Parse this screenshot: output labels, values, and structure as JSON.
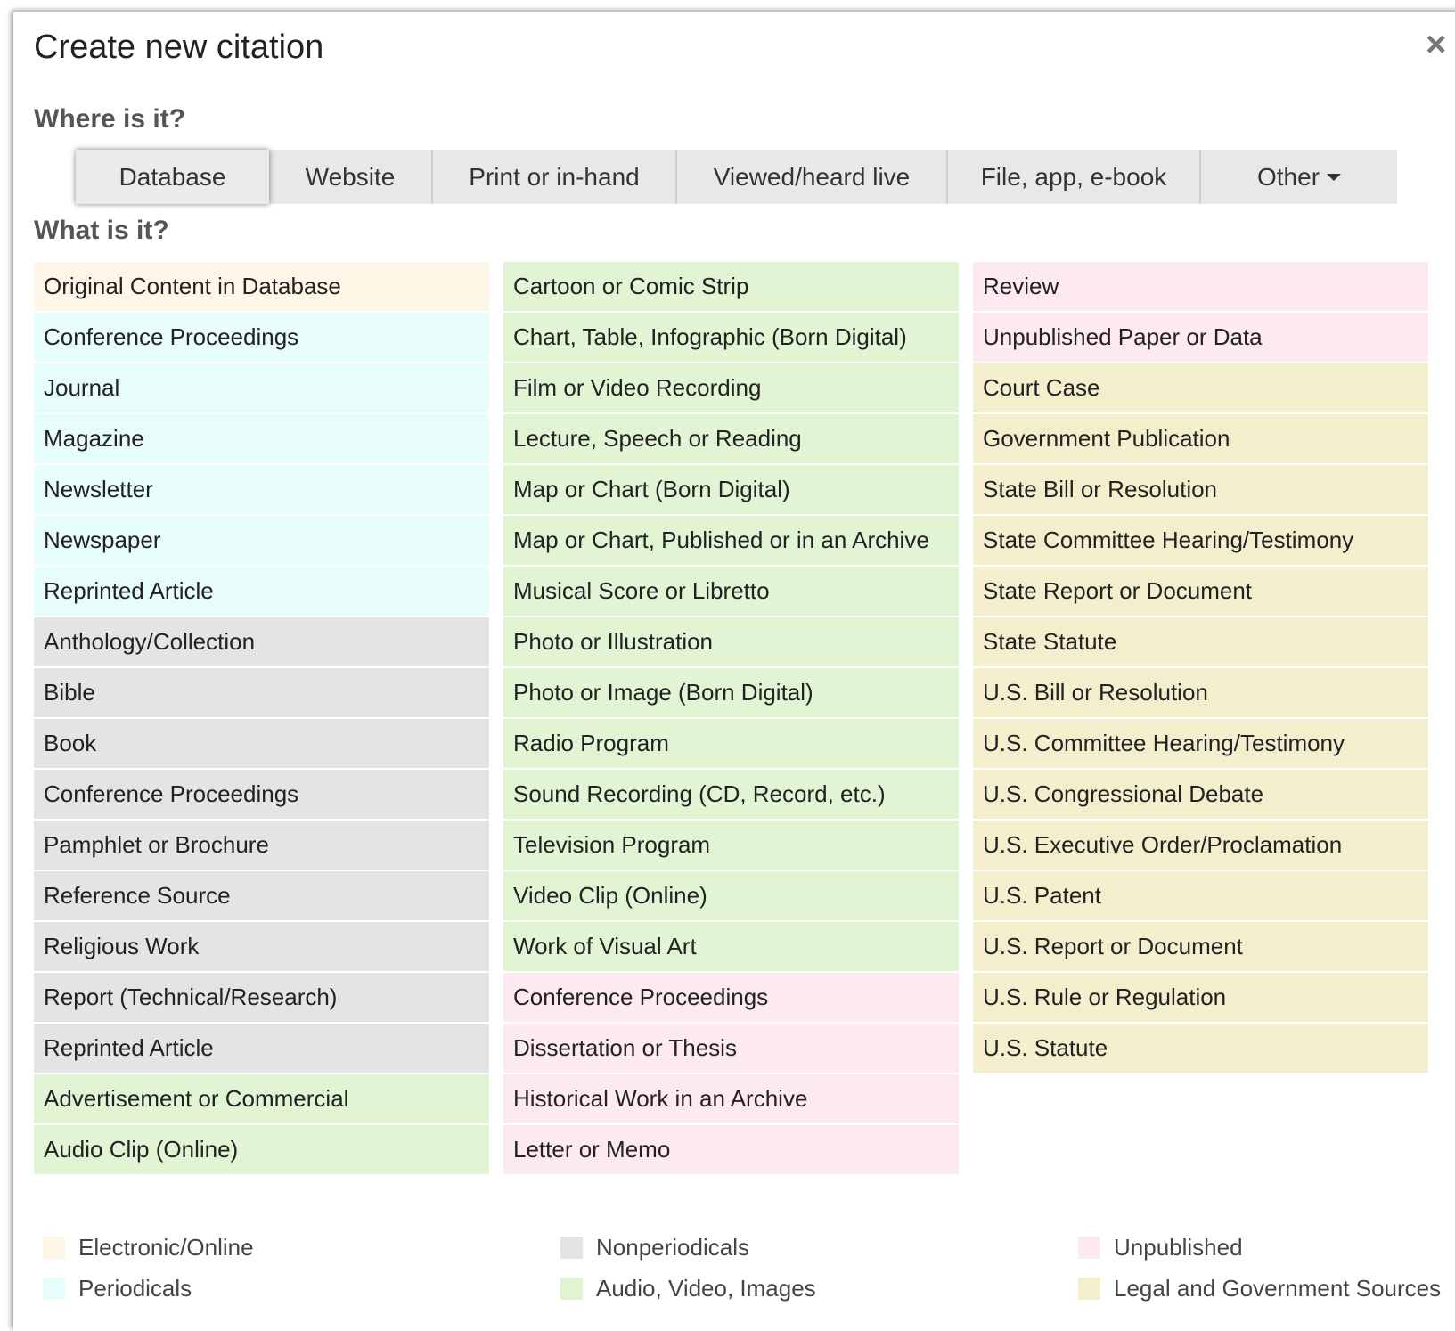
{
  "dialog": {
    "title": "Create new citation",
    "close": "×",
    "where_label": "Where is it?",
    "tabs": [
      {
        "label": "Database",
        "selected": true
      },
      {
        "label": "Website"
      },
      {
        "label": "Print or in-hand"
      },
      {
        "label": "Viewed/heard live"
      },
      {
        "label": "File, app, e-book"
      },
      {
        "label": "Other",
        "dropdown": true
      }
    ],
    "what_label": "What is it?",
    "groups": [
      {
        "name": "Electronic/Online",
        "color": "#fdf5e5",
        "items": [
          "Original Content in Database"
        ]
      },
      {
        "name": "Periodicals",
        "color": "#e7fdfb",
        "items": [
          "Conference Proceedings",
          "Journal",
          "Magazine",
          "Newsletter",
          "Newspaper",
          "Reprinted Article"
        ]
      },
      {
        "name": "Nonperiodicals",
        "color": "#e4e4e4",
        "items": [
          "Anthology/Collection",
          "Bible",
          "Book",
          "Conference Proceedings",
          "Pamphlet or Brochure",
          "Reference Source",
          "Religious Work",
          "Report (Technical/Research)",
          "Reprinted Article"
        ]
      },
      {
        "name": "Audio, Video, Images",
        "color": "#e1f5d5",
        "items": [
          "Advertisement or Commercial",
          "Audio Clip (Online)",
          "Cartoon or Comic Strip",
          "Chart, Table, Infographic (Born Digital)",
          "Film or Video Recording",
          "Lecture, Speech or Reading",
          "Map or Chart (Born Digital)",
          "Map or Chart, Published or in an Archive",
          "Musical Score or Libretto",
          "Photo or Illustration",
          "Photo or Image (Born Digital)",
          "Radio Program",
          "Sound Recording (CD, Record, etc.)",
          "Television Program",
          "Video Clip (Online)",
          "Work of Visual Art"
        ]
      },
      {
        "name": "Unpublished",
        "color": "#fdeaf0",
        "items": [
          "Conference Proceedings",
          "Dissertation or Thesis",
          "Historical Work in an Archive",
          "Letter or Memo",
          "Review",
          "Unpublished Paper or Data"
        ]
      },
      {
        "name": "Legal and Government Sources",
        "color": "#f3efcd",
        "items": [
          "Court Case",
          "Government Publication",
          "State Bill or Resolution",
          "State Committee Hearing/Testimony",
          "State Report or Document",
          "State Statute",
          "U.S. Bill or Resolution",
          "U.S. Committee Hearing/Testimony",
          "U.S. Congressional Debate",
          "U.S. Executive Order/Proclamation",
          "U.S. Patent",
          "U.S. Report or Document",
          "U.S. Rule or Regulation",
          "U.S. Statute"
        ]
      }
    ]
  }
}
